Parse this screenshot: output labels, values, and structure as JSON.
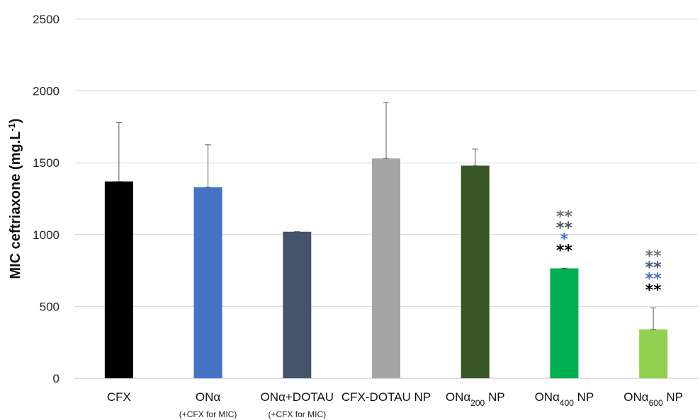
{
  "chart_data": {
    "type": "bar",
    "ylabel": "MIC ceftriaxone (mg.L",
    "ylabel_sup": "-1",
    "ylabel_close": ")",
    "ylim": [
      0,
      2500
    ],
    "yticks": [
      0,
      500,
      1000,
      1500,
      2000,
      2500
    ],
    "grid": true,
    "categories": [
      {
        "parts": [
          {
            "t": "CFX"
          }
        ],
        "sub": ""
      },
      {
        "parts": [
          {
            "t": "ONα"
          }
        ],
        "sub": "(+CFX for MIC)"
      },
      {
        "parts": [
          {
            "t": "ONα+DOTAU"
          }
        ],
        "sub": "(+CFX for MIC)"
      },
      {
        "parts": [
          {
            "t": "CFX-DOTAU NP"
          }
        ],
        "sub": ""
      },
      {
        "parts": [
          {
            "t": "ONα"
          },
          {
            "t": "200",
            "sub": true
          },
          {
            "t": " NP"
          }
        ],
        "sub": ""
      },
      {
        "parts": [
          {
            "t": "ONα"
          },
          {
            "t": "400",
            "sub": true
          },
          {
            "t": " NP"
          }
        ],
        "sub": ""
      },
      {
        "parts": [
          {
            "t": "ONα"
          },
          {
            "t": "600",
            "sub": true
          },
          {
            "t": " NP"
          }
        ],
        "sub": ""
      }
    ],
    "values": [
      1370,
      1330,
      1020,
      1530,
      1480,
      765,
      340
    ],
    "errors": [
      410,
      295,
      0,
      390,
      115,
      0,
      150
    ],
    "colors": [
      "#000000",
      "#4472c4",
      "#44546a",
      "#a5a5a5",
      "#375623",
      "#00b050",
      "#92d050"
    ],
    "annotations": [
      {
        "category": 5,
        "rows": [
          {
            "text": "**",
            "color": "#767171"
          },
          {
            "text": "**",
            "color": "#44546a"
          },
          {
            "text": "*",
            "color": "#4472c4"
          },
          {
            "text": "**",
            "color": "#000000"
          }
        ]
      },
      {
        "category": 6,
        "rows": [
          {
            "text": "**",
            "color": "#767171"
          },
          {
            "text": "**",
            "color": "#44546a"
          },
          {
            "text": "**",
            "color": "#4472c4"
          },
          {
            "text": "**",
            "color": "#000000"
          }
        ]
      }
    ]
  }
}
